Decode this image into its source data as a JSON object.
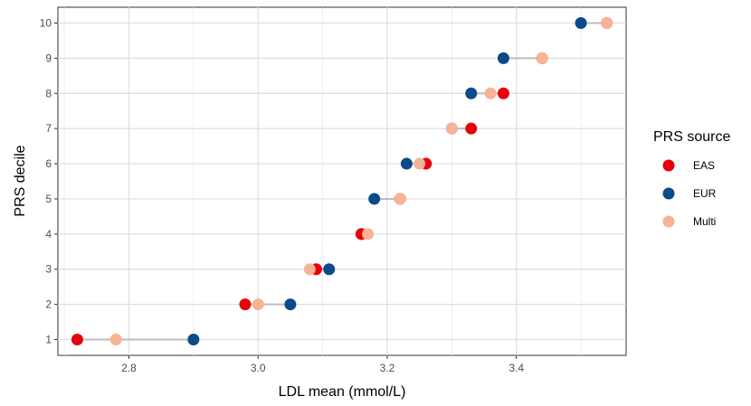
{
  "chart_data": {
    "type": "scatter",
    "subtype": "dumbbell",
    "xlabel": "LDL mean (mmol/L)",
    "ylabel": "PRS decile",
    "xlim": [
      2.69,
      3.57
    ],
    "ylim": [
      0.55,
      10.45
    ],
    "x_ticks": [
      2.8,
      3.0,
      3.2,
      3.4
    ],
    "x_tick_labels": [
      "2.8",
      "3.0",
      "3.2",
      "3.4"
    ],
    "y_ticks": [
      1,
      2,
      3,
      4,
      5,
      6,
      7,
      8,
      9,
      10
    ],
    "y_tick_labels": [
      "1",
      "2",
      "3",
      "4",
      "5",
      "6",
      "7",
      "8",
      "9",
      "10"
    ],
    "grid": true,
    "legend": {
      "title": "PRS source",
      "placement": "right"
    },
    "series": [
      {
        "name": "EAS",
        "color": "#e8000b",
        "points": [
          {
            "decile": 1,
            "x": 2.72
          },
          {
            "decile": 2,
            "x": 2.98
          },
          {
            "decile": 3,
            "x": 3.09
          },
          {
            "decile": 4,
            "x": 3.16
          },
          {
            "decile": 5,
            "x": 3.22
          },
          {
            "decile": 6,
            "x": 3.26
          },
          {
            "decile": 7,
            "x": 3.33
          },
          {
            "decile": 8,
            "x": 3.38
          },
          {
            "decile": 9,
            "x": 3.44
          },
          {
            "decile": 10,
            "x": 3.54
          }
        ]
      },
      {
        "name": "EUR",
        "color": "#0b4a8b",
        "points": [
          {
            "decile": 1,
            "x": 2.9
          },
          {
            "decile": 2,
            "x": 3.05
          },
          {
            "decile": 3,
            "x": 3.11
          },
          {
            "decile": 4,
            "x": 3.16
          },
          {
            "decile": 5,
            "x": 3.18
          },
          {
            "decile": 6,
            "x": 3.23
          },
          {
            "decile": 7,
            "x": 3.3
          },
          {
            "decile": 8,
            "x": 3.33
          },
          {
            "decile": 9,
            "x": 3.38
          },
          {
            "decile": 10,
            "x": 3.5
          }
        ]
      },
      {
        "name": "Multi",
        "color": "#f8b295",
        "points": [
          {
            "decile": 1,
            "x": 2.78
          },
          {
            "decile": 2,
            "x": 3.0
          },
          {
            "decile": 3,
            "x": 3.08
          },
          {
            "decile": 4,
            "x": 3.17
          },
          {
            "decile": 5,
            "x": 3.22
          },
          {
            "decile": 6,
            "x": 3.25
          },
          {
            "decile": 7,
            "x": 3.3
          },
          {
            "decile": 8,
            "x": 3.36
          },
          {
            "decile": 9,
            "x": 3.44
          },
          {
            "decile": 10,
            "x": 3.54
          }
        ]
      }
    ]
  }
}
